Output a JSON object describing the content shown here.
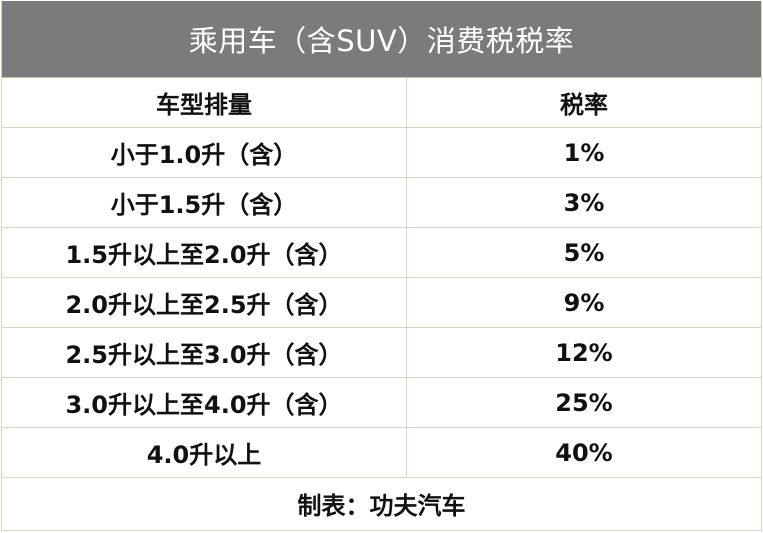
{
  "title": "乘用车（含SUV）消费税税率",
  "columns": {
    "displacement": "车型排量",
    "rate": "税率"
  },
  "rows": [
    {
      "displacement": "小于1.0升（含）",
      "rate": "1%"
    },
    {
      "displacement": "小于1.5升（含）",
      "rate": "3%"
    },
    {
      "displacement": "1.5升以上至2.0升（含）",
      "rate": "5%"
    },
    {
      "displacement": "2.0升以上至2.5升（含）",
      "rate": "9%"
    },
    {
      "displacement": "2.5升以上至3.0升（含）",
      "rate": "12%"
    },
    {
      "displacement": "3.0升以上至4.0升（含）",
      "rate": "25%"
    },
    {
      "displacement": "4.0升以上",
      "rate": "40%"
    }
  ],
  "footer": "制表：功夫汽车",
  "colors": {
    "title_background": "#7b7b7b",
    "title_text": "#ffffff",
    "grid_lines": "#d9d3c3",
    "body_text": "#111111"
  }
}
